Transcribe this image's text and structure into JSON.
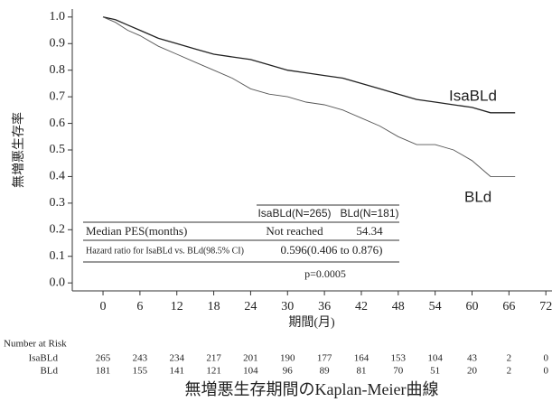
{
  "chart_data": {
    "type": "line",
    "title": "無増悪生存期間のKaplan-Meier曲線",
    "x_label": "期間(月)",
    "y_label": "無増悪生存率",
    "xlim": [
      -5,
      73
    ],
    "ylim": [
      -0.03,
      1.03
    ],
    "xticks": [
      0,
      6,
      12,
      18,
      24,
      30,
      36,
      42,
      48,
      54,
      60,
      66,
      72
    ],
    "yticks": [
      {
        "value": 0,
        "label": "0.0"
      },
      0.1,
      0.2,
      0.3,
      0.4,
      0.5,
      0.6,
      0.7,
      0.8,
      0.9,
      {
        "value": 1,
        "label": "1.0"
      }
    ],
    "series": [
      {
        "name": "IsaBLd",
        "color": "#222222",
        "x": [
          0,
          2,
          4,
          6,
          9,
          12,
          15,
          18,
          21,
          24,
          27,
          30,
          33,
          36,
          39,
          42,
          45,
          48,
          51,
          54,
          57,
          60,
          63,
          66,
          67
        ],
        "values": [
          1.0,
          0.99,
          0.97,
          0.95,
          0.92,
          0.9,
          0.88,
          0.86,
          0.85,
          0.84,
          0.82,
          0.8,
          0.79,
          0.78,
          0.77,
          0.75,
          0.73,
          0.71,
          0.69,
          0.68,
          0.67,
          0.66,
          0.64,
          0.64,
          0.64
        ]
      },
      {
        "name": "BLd",
        "color": "#555555",
        "x": [
          0,
          2,
          4,
          6,
          9,
          12,
          15,
          18,
          21,
          24,
          27,
          30,
          33,
          36,
          39,
          42,
          45,
          48,
          51,
          54,
          57,
          60,
          63,
          66,
          67
        ],
        "values": [
          1.0,
          0.98,
          0.95,
          0.93,
          0.89,
          0.86,
          0.83,
          0.8,
          0.77,
          0.73,
          0.71,
          0.7,
          0.68,
          0.67,
          0.65,
          0.62,
          0.59,
          0.55,
          0.52,
          0.52,
          0.5,
          0.46,
          0.4,
          0.4,
          0.4
        ]
      }
    ],
    "table": {
      "header": [
        "IsaBLd(N=265)",
        "BLd(N=181)"
      ],
      "rows": [
        [
          "Median PES(months)",
          "Not reached",
          "54.34"
        ],
        [
          "Hazard ratio for IsaBLd vs. BLd(98.5% CI)",
          "0.596(0.406 to 0.876)"
        ],
        [
          "p=0.0005"
        ]
      ]
    },
    "risk_table": {
      "title": "Number at Risk",
      "rows": [
        {
          "name": "IsaBLd",
          "values": [
            265,
            243,
            234,
            217,
            201,
            190,
            177,
            164,
            153,
            104,
            43,
            2,
            0
          ]
        },
        {
          "name": "BLd",
          "values": [
            181,
            155,
            141,
            121,
            104,
            96,
            89,
            81,
            70,
            51,
            20,
            2,
            0
          ]
        }
      ]
    }
  }
}
